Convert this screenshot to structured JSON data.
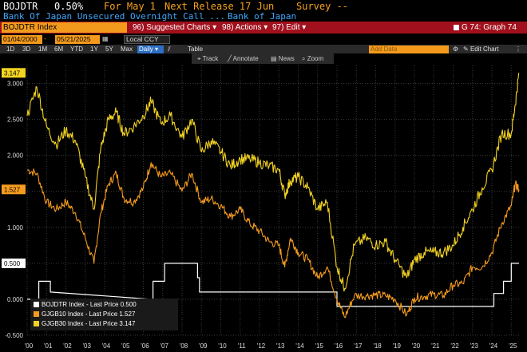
{
  "header": {
    "ticker": "BOJDTR",
    "value": "0.50%",
    "for_label": "For May 1",
    "next_release": "Next Release 17 Jun",
    "survey": "Survey --",
    "description": "Bank Of Japan Unsecured Overnight Call ...",
    "source": "Bank of Japan"
  },
  "toolbar": {
    "security": "BOJDTR Index",
    "suggested": "Suggested Charts",
    "actions": "Actions",
    "edit": "Edit",
    "graph": "G 74: Graph 74",
    "suggested_num": "96)",
    "actions_num": "98)",
    "edit_num": "97)"
  },
  "range": {
    "start": "01/04/2000",
    "end": "05/21/2025",
    "currency": "Local CCY"
  },
  "periods": [
    "1D",
    "3D",
    "1M",
    "6M",
    "YTD",
    "1Y",
    "5Y",
    "Max"
  ],
  "frequency": "Daily",
  "table_label": "Table",
  "add_data_placeholder": "Add Data",
  "edit_chart": "Edit Chart",
  "chart_tools": [
    "Track",
    "Annotate",
    "News",
    "Zoom"
  ],
  "colors": {
    "bojdtr": "#ffffff",
    "gjgb10": "#f59b1e",
    "gjgb30": "#f3d322",
    "accent": "#f39a1c",
    "bar": "#a1101d"
  },
  "chart_data": {
    "type": "line",
    "ylim": [
      -0.5,
      3.25
    ],
    "yticks": [
      "3.000",
      "2.500",
      "2.000",
      "1.500",
      "1.000",
      "0.500",
      "0.000",
      "-0.500"
    ],
    "ytick_values": [
      3.0,
      2.5,
      2.0,
      1.5,
      1.0,
      0.5,
      0.0,
      -0.5
    ],
    "last_tags": [
      {
        "label": "3.147",
        "value": 3.147,
        "color": "#f3d322"
      },
      {
        "label": "1.527",
        "value": 1.527,
        "color": "#f59b1e"
      },
      {
        "label": "0.500",
        "value": 0.5,
        "color": "#ffffff"
      }
    ],
    "xlabels": [
      "'00",
      "'01",
      "'02",
      "'03",
      "'04",
      "'05",
      "'06",
      "'07",
      "'08",
      "'09",
      "'10",
      "'11",
      "'12",
      "'13",
      "'14",
      "'15",
      "'16",
      "'17",
      "'18",
      "'19",
      "'20",
      "'21",
      "'22",
      "'23",
      "'24",
      "'25"
    ],
    "xlim": [
      2000.0,
      2025.4
    ],
    "series": [
      {
        "name": "BOJDTR Index - Last Price 0.500",
        "color": "#ffffff",
        "x": [
          2000.0,
          2000.6,
          2000.6,
          2001.2,
          2001.2,
          2006.4,
          2006.4,
          2006.5,
          2006.5,
          2007.1,
          2007.1,
          2008.8,
          2008.8,
          2008.9,
          2008.9,
          2016.0,
          2016.0,
          2024.1,
          2024.1,
          2024.6,
          2024.6,
          2025.0,
          2025.0,
          2025.4
        ],
        "y": [
          0.0,
          0.0,
          0.25,
          0.25,
          0.1,
          0.0,
          0.0,
          0.0,
          0.25,
          0.25,
          0.5,
          0.5,
          0.3,
          0.3,
          0.1,
          0.1,
          -0.1,
          -0.1,
          0.08,
          0.08,
          0.25,
          0.25,
          0.5,
          0.5
        ]
      },
      {
        "name": "GJGB10 Index - Last Price 1.527",
        "color": "#f59b1e",
        "x": [
          2000.0,
          2000.5,
          2001.0,
          2001.5,
          2002.0,
          2002.5,
          2003.0,
          2003.45,
          2003.8,
          2004.2,
          2004.6,
          2005.0,
          2005.5,
          2006.0,
          2006.4,
          2006.9,
          2007.4,
          2008.0,
          2008.5,
          2009.0,
          2009.5,
          2010.0,
          2010.5,
          2011.0,
          2011.5,
          2012.0,
          2012.5,
          2013.0,
          2013.3,
          2013.6,
          2014.0,
          2014.5,
          2015.0,
          2015.5,
          2016.0,
          2016.4,
          2016.9,
          2017.5,
          2018.0,
          2018.5,
          2019.0,
          2019.6,
          2020.0,
          2020.5,
          2021.0,
          2021.5,
          2022.0,
          2022.5,
          2023.0,
          2023.5,
          2024.0,
          2024.5,
          2025.0,
          2025.2,
          2025.4
        ],
        "y": [
          1.8,
          1.75,
          1.35,
          1.25,
          1.35,
          1.2,
          0.85,
          0.5,
          1.2,
          1.6,
          1.75,
          1.4,
          1.35,
          1.55,
          1.9,
          1.7,
          1.75,
          1.5,
          1.75,
          1.35,
          1.4,
          1.3,
          1.15,
          1.25,
          1.05,
          0.95,
          0.8,
          0.75,
          0.45,
          0.85,
          0.65,
          0.55,
          0.3,
          0.45,
          0.0,
          -0.25,
          0.05,
          0.05,
          0.06,
          0.05,
          0.0,
          -0.22,
          0.02,
          0.04,
          0.07,
          0.05,
          0.2,
          0.22,
          0.45,
          0.45,
          0.65,
          1.05,
          1.3,
          1.6,
          1.527
        ]
      },
      {
        "name": "GJGB30 Index - Last Price 3.147",
        "color": "#f3d322",
        "x": [
          2000.0,
          2000.5,
          2001.0,
          2001.5,
          2002.0,
          2002.5,
          2003.0,
          2003.45,
          2003.8,
          2004.2,
          2004.6,
          2005.0,
          2005.5,
          2006.0,
          2006.4,
          2006.9,
          2007.4,
          2008.0,
          2008.5,
          2009.0,
          2009.5,
          2010.0,
          2010.5,
          2011.0,
          2011.5,
          2012.0,
          2012.5,
          2013.0,
          2013.3,
          2013.6,
          2014.0,
          2014.5,
          2015.0,
          2015.5,
          2016.0,
          2016.4,
          2016.9,
          2017.5,
          2018.0,
          2018.5,
          2019.0,
          2019.6,
          2020.0,
          2020.5,
          2021.0,
          2021.5,
          2022.0,
          2022.5,
          2023.0,
          2023.5,
          2024.0,
          2024.5,
          2025.0,
          2025.2,
          2025.4
        ],
        "y": [
          2.55,
          2.95,
          2.4,
          2.15,
          2.35,
          2.2,
          1.7,
          1.25,
          2.1,
          2.5,
          2.6,
          2.3,
          2.4,
          2.55,
          2.75,
          2.45,
          2.55,
          2.25,
          2.5,
          2.05,
          2.2,
          2.05,
          1.85,
          1.95,
          1.95,
          1.9,
          1.85,
          1.8,
          1.45,
          1.65,
          1.7,
          1.55,
          1.25,
          1.35,
          0.45,
          0.15,
          0.75,
          0.85,
          0.75,
          0.8,
          0.55,
          0.3,
          0.55,
          0.65,
          0.65,
          0.65,
          0.75,
          1.0,
          1.25,
          1.55,
          1.8,
          2.3,
          2.3,
          2.7,
          3.147
        ]
      }
    ]
  }
}
